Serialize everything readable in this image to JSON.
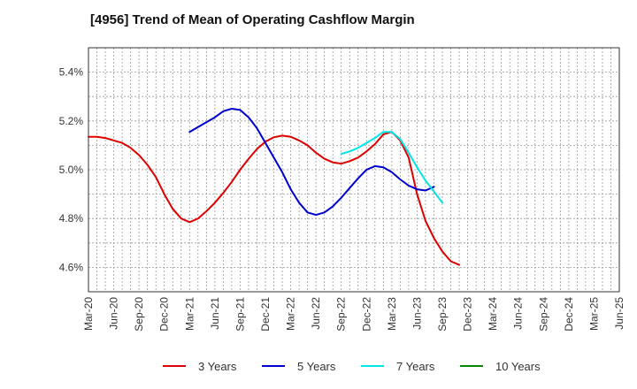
{
  "chart_data": {
    "type": "line",
    "title": "[4956]  Trend of Mean of Operating Cashflow Margin",
    "xlabel": "",
    "ylabel": "",
    "x_ticks": [
      "Mar-20",
      "Jun-20",
      "Sep-20",
      "Dec-20",
      "Mar-21",
      "Jun-21",
      "Sep-21",
      "Dec-21",
      "Mar-22",
      "Jun-22",
      "Sep-22",
      "Dec-22",
      "Mar-23",
      "Jun-23",
      "Sep-23",
      "Dec-23",
      "Mar-24",
      "Jun-24",
      "Sep-24",
      "Dec-24",
      "Mar-25",
      "Jun-25"
    ],
    "y_ticks": [
      "4.6%",
      "4.8%",
      "5.0%",
      "5.2%",
      "5.4%"
    ],
    "y_tick_values": [
      4.6,
      4.8,
      5.0,
      5.2,
      5.4
    ],
    "ylim": [
      4.5,
      5.5
    ],
    "grid": true,
    "legend_position": "bottom",
    "series": [
      {
        "name": "3 Years",
        "color": "#dd0000",
        "start_index": 0,
        "values": [
          5.135,
          5.135,
          5.13,
          5.12,
          5.11,
          5.09,
          5.06,
          5.02,
          4.97,
          4.9,
          4.84,
          4.8,
          4.785,
          4.8,
          4.83,
          4.865,
          4.905,
          4.95,
          5.0,
          5.045,
          5.085,
          5.115,
          5.133,
          5.14,
          5.135,
          5.12,
          5.1,
          5.07,
          5.045,
          5.03,
          5.025,
          5.035,
          5.05,
          5.075,
          5.105,
          5.145,
          5.155,
          5.12,
          5.05,
          4.9,
          4.79,
          4.72,
          4.665,
          4.625,
          4.61
        ]
      },
      {
        "name": "5 Years",
        "color": "#0000cc",
        "start_index": 12,
        "values": [
          5.155,
          5.175,
          5.195,
          5.215,
          5.24,
          5.25,
          5.245,
          5.215,
          5.17,
          5.11,
          5.05,
          4.99,
          4.92,
          4.865,
          4.825,
          4.815,
          4.825,
          4.85,
          4.885,
          4.925,
          4.965,
          5.0,
          5.015,
          5.01,
          4.99,
          4.96,
          4.935,
          4.92,
          4.915,
          4.93
        ]
      },
      {
        "name": "7 Years",
        "color": "#00e5e5",
        "start_index": 30,
        "values": [
          5.065,
          5.075,
          5.09,
          5.11,
          5.13,
          5.155,
          5.155,
          5.125,
          5.07,
          5.01,
          4.955,
          4.91,
          4.865
        ]
      },
      {
        "name": "10 Years",
        "color": "#008800",
        "start_index": 0,
        "values": []
      }
    ]
  }
}
